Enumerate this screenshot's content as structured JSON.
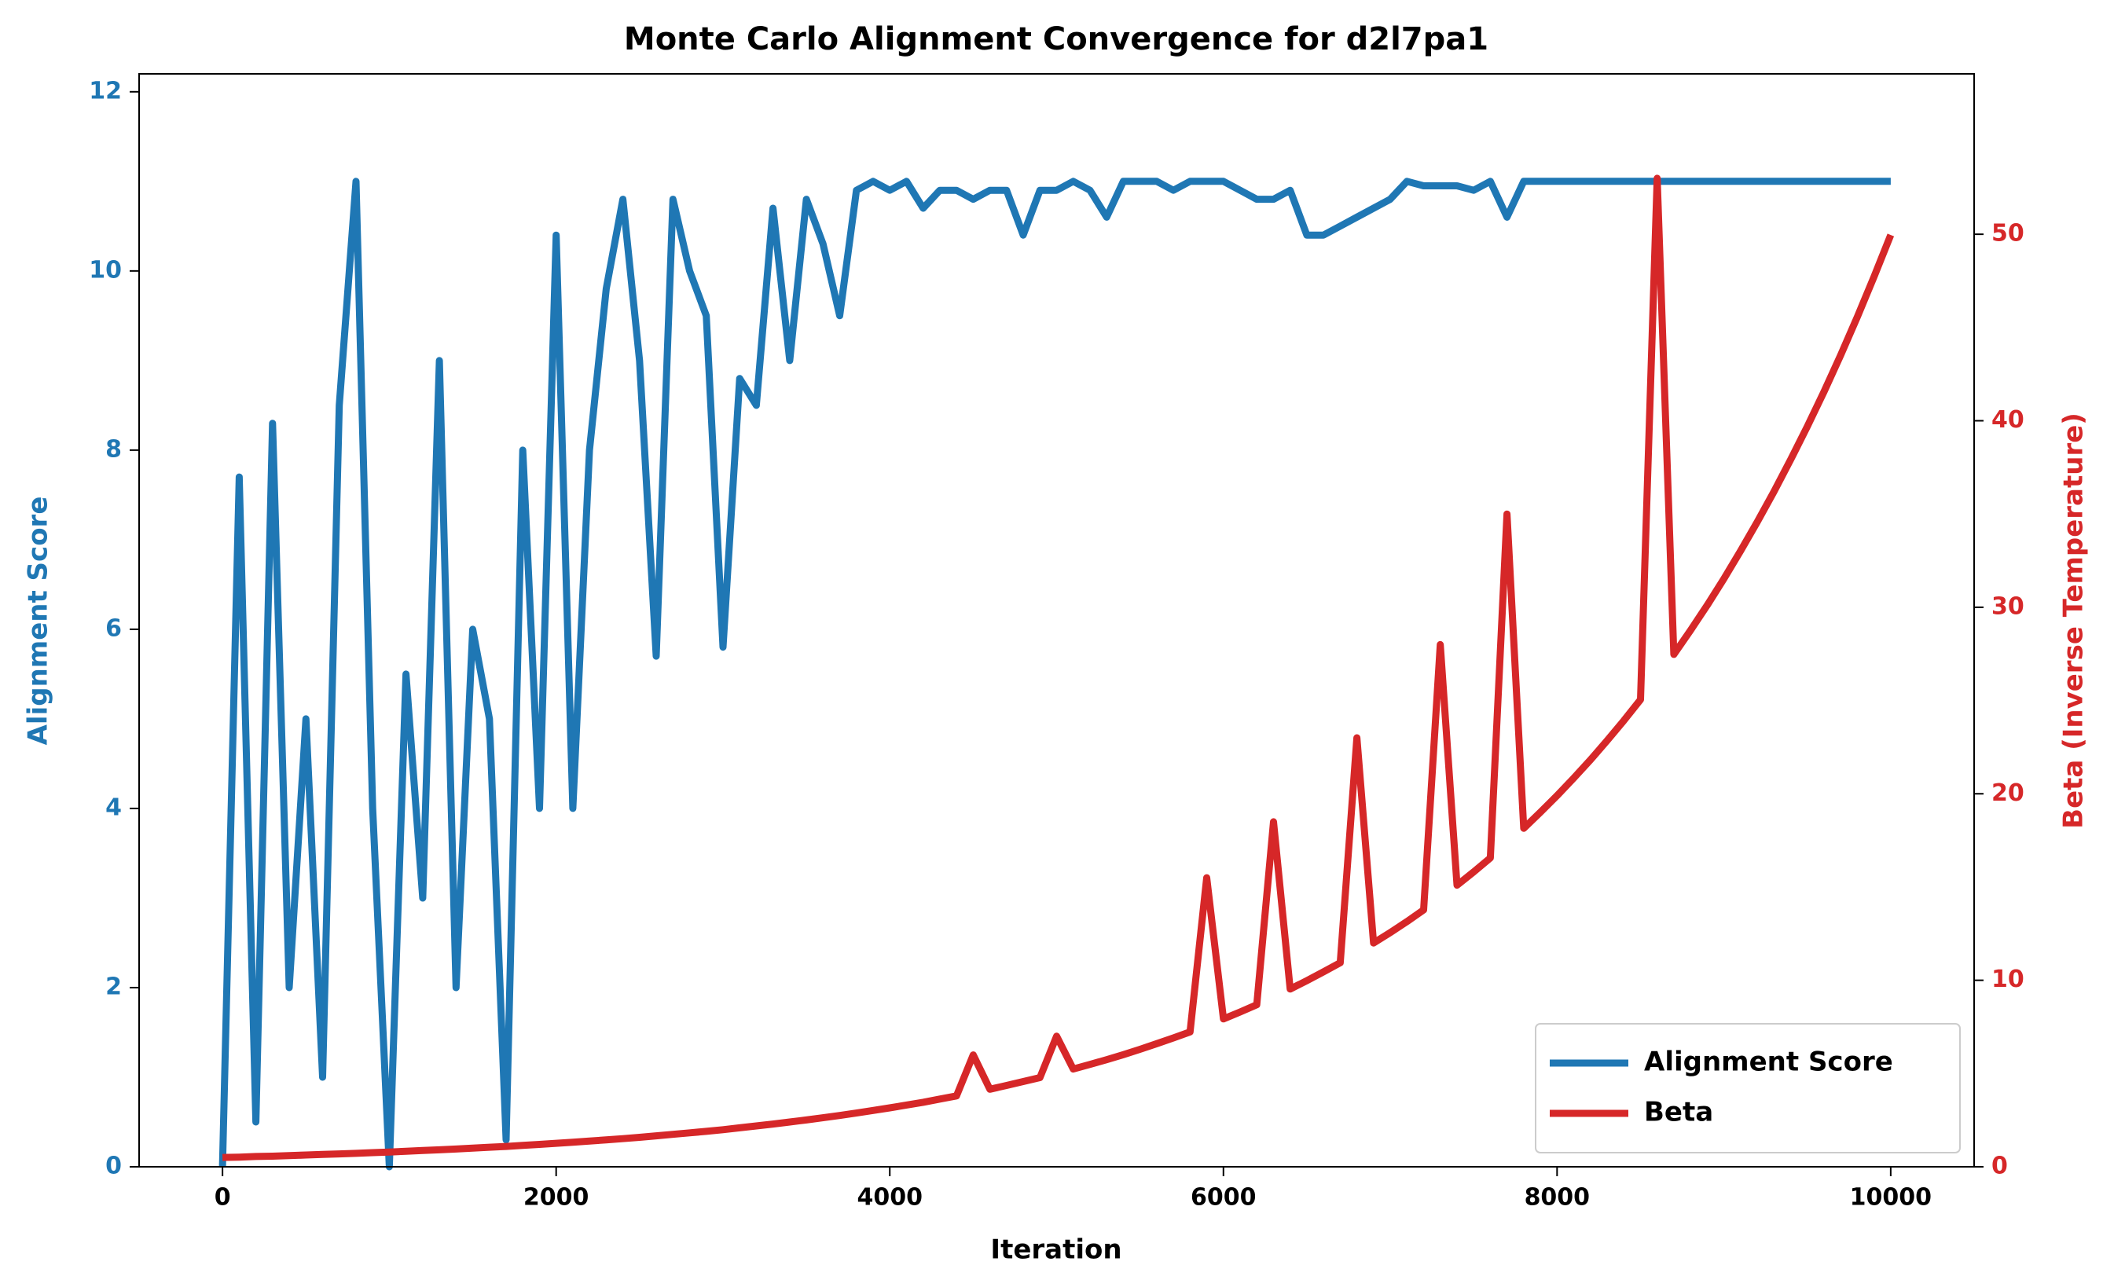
{
  "chart_data": {
    "type": "line",
    "title": "Monte Carlo Alignment Convergence for d2l7pa1",
    "x_label": "Iteration",
    "y_label": "Alignment Score",
    "y2_label": "Beta (Inverse Temperature)",
    "xlim": [
      -500,
      10500
    ],
    "xticks": [
      0,
      2000,
      4000,
      6000,
      8000,
      10000
    ],
    "ylim": [
      0,
      12.2
    ],
    "yticks": [
      0,
      2,
      4,
      6,
      8,
      10,
      12
    ],
    "y2lim": [
      0,
      58.6
    ],
    "y2ticks": [
      0,
      10,
      20,
      30,
      40,
      50
    ],
    "legend": "lower right",
    "x": [
      0,
      100,
      200,
      300,
      400,
      500,
      600,
      700,
      800,
      900,
      1000,
      1100,
      1200,
      1300,
      1400,
      1500,
      1600,
      1700,
      1800,
      1900,
      2000,
      2100,
      2200,
      2300,
      2400,
      2500,
      2600,
      2700,
      2800,
      2900,
      3000,
      3100,
      3200,
      3300,
      3400,
      3500,
      3600,
      3700,
      3800,
      3900,
      4000,
      4100,
      4200,
      4300,
      4400,
      4500,
      4600,
      4700,
      4800,
      4900,
      5000,
      5100,
      5200,
      5300,
      5400,
      5500,
      5600,
      5700,
      5800,
      5900,
      6000,
      6100,
      6200,
      6300,
      6400,
      6500,
      6600,
      6700,
      6800,
      6900,
      7000,
      7100,
      7200,
      7300,
      7400,
      7500,
      7600,
      7700,
      7800,
      7900,
      8000,
      8100,
      8200,
      8300,
      8400,
      8500,
      8600,
      8700,
      8800,
      8900,
      9000,
      9100,
      9200,
      9300,
      9400,
      9500,
      9600,
      9700,
      9800,
      9900,
      10000
    ],
    "series": [
      {
        "name": "Alignment Score",
        "color": "#1f77b4",
        "axis": "y",
        "values": [
          0,
          7.7,
          0.5,
          8.3,
          2,
          5,
          1,
          8.5,
          11,
          4,
          0,
          5.5,
          3,
          9,
          2,
          6,
          5,
          0.3,
          8,
          4,
          10.4,
          4,
          8,
          9.8,
          10.8,
          9,
          5.7,
          10.8,
          10,
          9.5,
          5.8,
          8.8,
          8.5,
          10.7,
          9,
          10.8,
          10.3,
          9.5,
          10.9,
          11,
          10.9,
          11,
          10.7,
          10.9,
          10.9,
          10.8,
          10.9,
          10.9,
          10.4,
          10.9,
          10.9,
          11,
          10.9,
          10.6,
          11,
          11,
          11,
          10.9,
          11,
          11,
          11,
          10.9,
          10.8,
          10.8,
          10.9,
          10.4,
          10.4,
          10.5,
          10.6,
          10.7,
          10.8,
          11,
          10.95,
          10.95,
          10.95,
          10.9,
          11,
          10.6,
          11,
          11,
          11,
          11,
          11,
          11,
          11,
          11,
          11,
          11,
          11,
          11,
          11,
          11,
          11,
          11,
          11,
          11,
          11,
          11,
          11,
          11,
          11
        ]
      },
      {
        "name": "Beta",
        "color": "#d62728",
        "axis": "y2",
        "values": [
          0.5,
          0.52,
          0.55,
          0.57,
          0.6,
          0.63,
          0.66,
          0.69,
          0.72,
          0.76,
          0.79,
          0.83,
          0.87,
          0.91,
          0.95,
          1.0,
          1.05,
          1.09,
          1.15,
          1.2,
          1.26,
          1.32,
          1.38,
          1.44,
          1.51,
          1.58,
          1.66,
          1.74,
          1.82,
          1.9,
          1.99,
          2.09,
          2.19,
          2.29,
          2.4,
          2.51,
          2.63,
          2.75,
          2.88,
          3.02,
          3.16,
          3.31,
          3.46,
          3.63,
          3.8,
          6,
          4.16,
          4.36,
          4.57,
          4.78,
          7,
          5.24,
          5.49,
          5.74,
          6.01,
          6.3,
          6.6,
          6.91,
          7.23,
          15.5,
          7.93,
          8.3,
          8.69,
          18.5,
          9.53,
          9.98,
          10.45,
          10.94,
          23,
          12.0,
          12.56,
          13.15,
          13.77,
          28,
          15.1,
          15.81,
          16.56,
          35,
          18.15,
          19.01,
          19.9,
          20.84,
          21.82,
          22.85,
          23.92,
          25.05,
          53,
          27.47,
          28.76,
          30.11,
          31.53,
          33.02,
          34.57,
          36.2,
          37.91,
          39.69,
          41.56,
          43.52,
          45.57,
          47.72,
          49.96
        ]
      }
    ]
  }
}
